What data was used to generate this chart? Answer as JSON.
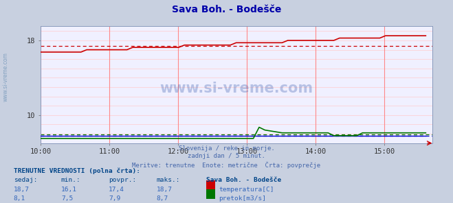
{
  "title": "Sava Boh. - Bodešče",
  "title_color": "#0000aa",
  "bg_color": "#c8d0e0",
  "plot_bg_color": "#f0f0ff",
  "grid_color_v": "#ff8888",
  "grid_color_h": "#ffcccc",
  "subtitle_lines": [
    "Slovenija / reke in morje.",
    "zadnji dan / 5 minut.",
    "Meritve: trenutne  Enote: metrične  Črta: povprečje"
  ],
  "subtitle_color": "#4466aa",
  "watermark": "www.si-vreme.com",
  "watermark_color": "#3355aa",
  "x_ticks": [
    10,
    11,
    12,
    13,
    14,
    15
  ],
  "x_tick_labels": [
    "10:00",
    "11:00",
    "12:00",
    "13:00",
    "14:00",
    "15:00"
  ],
  "y_min": 7.0,
  "y_max": 19.5,
  "y_ticks": [
    10,
    18
  ],
  "temp_color": "#cc0000",
  "flow_color": "#007700",
  "height_color": "#0000cc",
  "temp_avg": 17.4,
  "flow_avg": 7.9,
  "height_avg": 7.8,
  "table_header_color": "#004488",
  "col_value_color": "#3366bb",
  "legend_title": "Sava Boh. - Bodešče",
  "sidebar_text": "www.si-vreme.com",
  "sidebar_color": "#7799bb"
}
